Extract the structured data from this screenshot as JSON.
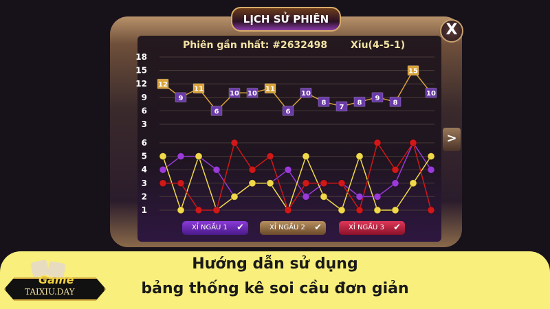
{
  "window": {
    "title": "LỊCH SỬ PHIÊN",
    "close_label": "X",
    "next_label": ">"
  },
  "header": {
    "latest_session": "Phiên gần nhất: #2632498",
    "result": "Xỉu(4-5-1)"
  },
  "chart_data": [
    {
      "type": "line",
      "title": "",
      "y_ticks": [
        18,
        15,
        12,
        9,
        6,
        3
      ],
      "ylim": [
        3,
        18
      ],
      "grid": true,
      "series": [
        {
          "values": [
            12,
            9,
            11,
            6,
            10,
            10,
            11,
            6,
            10,
            8,
            7,
            8,
            9,
            8,
            15,
            10
          ]
        }
      ],
      "marker_colors": {
        "high": "#d9a23a",
        "low": "#6a3aa8"
      }
    },
    {
      "type": "line",
      "y_ticks": [
        6,
        5,
        4,
        3,
        2,
        1
      ],
      "ylim": [
        1,
        6
      ],
      "grid": true,
      "series": [
        {
          "name": "XỈ NGẦU 1",
          "color": "#9a3ad8",
          "values": [
            4,
            5,
            5,
            4,
            2,
            3,
            3,
            4,
            2,
            3,
            3,
            2,
            2,
            3,
            6,
            4
          ]
        },
        {
          "name": "XỈ NGẦU 2",
          "color": "#f0d84a",
          "values": [
            5,
            1,
            5,
            1,
            2,
            3,
            3,
            1,
            5,
            2,
            1,
            5,
            1,
            1,
            3,
            5
          ]
        },
        {
          "name": "XỈ NGẦU 3",
          "color": "#d01818",
          "values": [
            3,
            3,
            1,
            1,
            6,
            4,
            5,
            1,
            3,
            3,
            3,
            1,
            6,
            4,
            6,
            1
          ]
        }
      ]
    }
  ],
  "legend": [
    {
      "label": "XỈ NGẦU 1",
      "checked": true,
      "color": "#6a2ab8"
    },
    {
      "label": "XỈ NGẦU 2",
      "checked": true,
      "color": "#8a6a3a"
    },
    {
      "label": "XỈ NGẦU 3",
      "checked": true,
      "color": "#b81838"
    }
  ],
  "check_icon": "✔",
  "banner": {
    "line1": "Hướng dẫn sử dụng",
    "line2": "bảng thống kê soi cầu đơn giản"
  },
  "logo": {
    "text1": "Game",
    "text2": "TAIXIU.DAY"
  }
}
